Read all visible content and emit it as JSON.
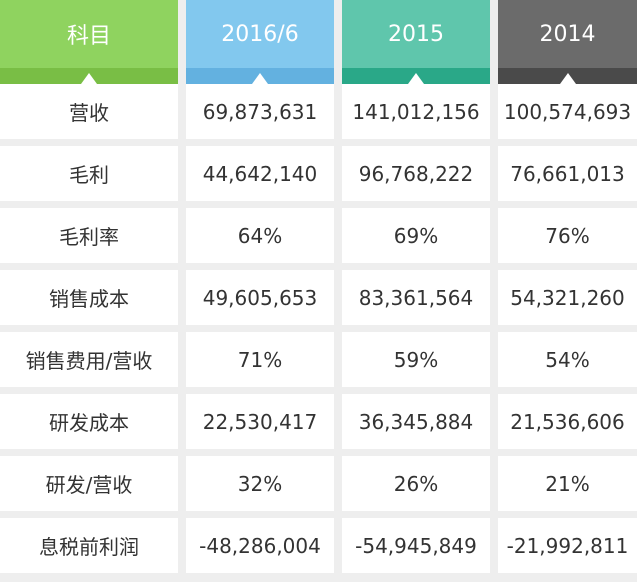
{
  "colors": {
    "subject_header": "#8fd35f",
    "subject_strip": "#79be45",
    "col_2016_header": "#82c8ee",
    "col_2016_strip": "#63b1e0",
    "col_2015_header": "#5fc6ac",
    "col_2015_strip": "#2aa888",
    "col_2014_header": "#6b6b6b",
    "col_2014_strip": "#4a4a4a"
  },
  "header": {
    "subject": "科目",
    "years": [
      "2016/6",
      "2015",
      "2014"
    ]
  },
  "rows": [
    {
      "label": "营收",
      "values": [
        "69,873,631",
        "141,012,156",
        "100,574,693"
      ]
    },
    {
      "label": "毛利",
      "values": [
        "44,642,140",
        "96,768,222",
        "76,661,013"
      ]
    },
    {
      "label": "毛利率",
      "values": [
        "64%",
        "69%",
        "76%"
      ]
    },
    {
      "label": "销售成本",
      "values": [
        "49,605,653",
        "83,361,564",
        "54,321,260"
      ]
    },
    {
      "label": "销售费用/营收",
      "values": [
        "71%",
        "59%",
        "54%"
      ]
    },
    {
      "label": "研发成本",
      "values": [
        "22,530,417",
        "36,345,884",
        "21,536,606"
      ]
    },
    {
      "label": "研发/营收",
      "values": [
        "32%",
        "26%",
        "21%"
      ]
    },
    {
      "label": "息税前利润",
      "values": [
        "-48,286,004",
        "-54,945,849",
        "-21,992,811"
      ]
    }
  ]
}
